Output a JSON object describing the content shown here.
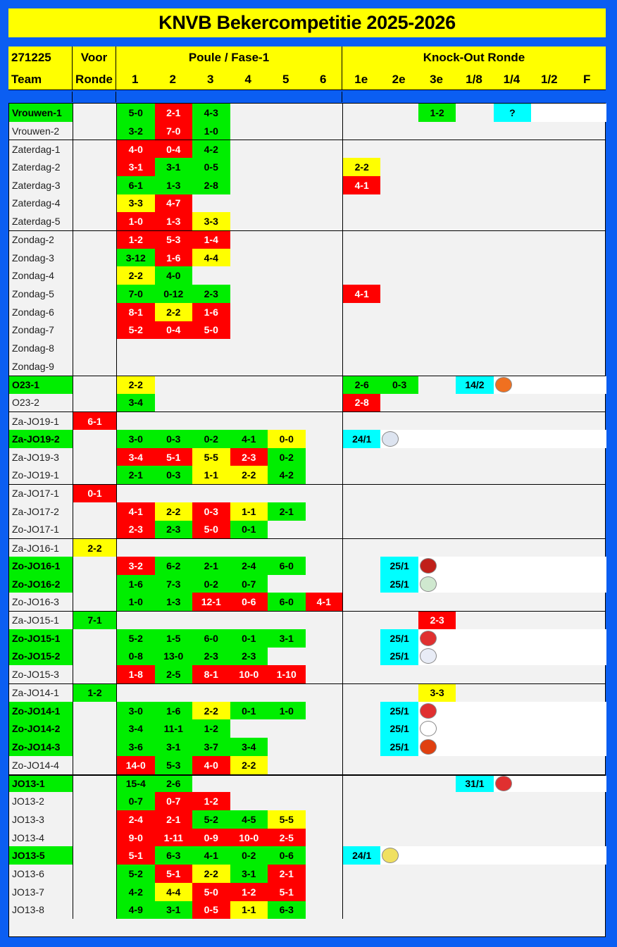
{
  "title": "KNVB Bekercompetitie 2025-2026",
  "header": {
    "date": "271225",
    "team": "Team",
    "voor1": "Voor",
    "voor2": "Ronde",
    "poule": "Poule / Fase-1",
    "knockout": "Knock-Out Ronde",
    "poule_cols": [
      "1",
      "2",
      "3",
      "4",
      "5",
      "6"
    ],
    "ko_cols": [
      "1e",
      "2e",
      "3e",
      "1/8",
      "1/4",
      "1/2",
      "F"
    ]
  },
  "colors": {
    "g": "#00ee00",
    "r": "#ff0000",
    "y": "#ffff00",
    "c": "#00ffff",
    "border": "#0b5ef2"
  },
  "groups": [
    [
      {
        "team": "Vrouwen-1",
        "active": true,
        "poule": [
          [
            "5-0",
            "g"
          ],
          [
            "2-1",
            "r"
          ],
          [
            "4-3",
            "g"
          ]
        ],
        "ko": [
          null,
          null,
          [
            "1-2",
            "g"
          ],
          null,
          [
            "?",
            "c"
          ]
        ]
      },
      {
        "team": "Vrouwen-2",
        "poule": [
          [
            "3-2",
            "g"
          ],
          [
            "7-0",
            "r"
          ],
          [
            "1-0",
            "g"
          ]
        ]
      }
    ],
    [
      {
        "team": "Zaterdag-1",
        "poule": [
          [
            "4-0",
            "r"
          ],
          [
            "0-4",
            "r"
          ],
          [
            "4-2",
            "g"
          ]
        ]
      },
      {
        "team": "Zaterdag-2",
        "poule": [
          [
            "3-1",
            "r"
          ],
          [
            "3-1",
            "g"
          ],
          [
            "0-5",
            "g"
          ]
        ],
        "ko": [
          [
            "2-2",
            "y"
          ]
        ]
      },
      {
        "team": "Zaterdag-3",
        "poule": [
          [
            "6-1",
            "g"
          ],
          [
            "1-3",
            "g"
          ],
          [
            "2-8",
            "g"
          ]
        ],
        "ko": [
          [
            "4-1",
            "r"
          ]
        ]
      },
      {
        "team": "Zaterdag-4",
        "poule": [
          [
            "3-3",
            "y"
          ],
          [
            "4-7",
            "r"
          ]
        ]
      },
      {
        "team": "Zaterdag-5",
        "poule": [
          [
            "1-0",
            "r"
          ],
          [
            "1-3",
            "r"
          ],
          [
            "3-3",
            "y"
          ]
        ]
      }
    ],
    [
      {
        "team": "Zondag-2",
        "poule": [
          [
            "1-2",
            "r"
          ],
          [
            "5-3",
            "r"
          ],
          [
            "1-4",
            "r"
          ]
        ]
      },
      {
        "team": "Zondag-3",
        "poule": [
          [
            "3-12",
            "g"
          ],
          [
            "1-6",
            "r"
          ],
          [
            "4-4",
            "y"
          ]
        ]
      },
      {
        "team": "Zondag-4",
        "poule": [
          [
            "2-2",
            "y"
          ],
          [
            "4-0",
            "g"
          ]
        ]
      },
      {
        "team": "Zondag-5",
        "poule": [
          [
            "7-0",
            "g"
          ],
          [
            "0-12",
            "g"
          ],
          [
            "2-3",
            "g"
          ]
        ],
        "ko": [
          [
            "4-1",
            "r"
          ]
        ]
      },
      {
        "team": "Zondag-6",
        "poule": [
          [
            "8-1",
            "r"
          ],
          [
            "2-2",
            "y"
          ],
          [
            "1-6",
            "r"
          ]
        ]
      },
      {
        "team": "Zondag-7",
        "poule": [
          [
            "5-2",
            "r"
          ],
          [
            "0-4",
            "r"
          ],
          [
            "5-0",
            "r"
          ]
        ]
      },
      {
        "team": "Zondag-8",
        "poule": []
      },
      {
        "team": "Zondag-9",
        "poule": []
      }
    ],
    [
      {
        "team": "O23-1",
        "active": true,
        "poule": [
          [
            "2-2",
            "y"
          ]
        ],
        "ko": [
          [
            "2-6",
            "g"
          ],
          [
            "0-3",
            "g"
          ],
          null,
          [
            "14/2",
            "c"
          ],
          {
            "logo": "FC Volendam",
            "bg": "#f07020",
            "fg": "#000"
          }
        ]
      },
      {
        "team": "O23-2",
        "poule": [
          [
            "3-4",
            "g"
          ]
        ],
        "ko": [
          [
            "2-8",
            "r"
          ]
        ]
      }
    ],
    [
      {
        "team": "Za-JO19-1",
        "voor": [
          "6-1",
          "r"
        ],
        "poule": []
      },
      {
        "team": "Za-JO19-2",
        "active": true,
        "poule": [
          [
            "3-0",
            "g"
          ],
          [
            "0-3",
            "g"
          ],
          [
            "0-2",
            "g"
          ],
          [
            "4-1",
            "g"
          ],
          [
            "0-0",
            "y"
          ]
        ],
        "ko": [
          [
            "24/1",
            "c"
          ],
          {
            "logo": "club",
            "bg": "#dde4f0",
            "fg": "#223"
          }
        ]
      },
      {
        "team": "Za-JO19-3",
        "poule": [
          [
            "3-4",
            "r"
          ],
          [
            "5-1",
            "r"
          ],
          [
            "5-5",
            "y"
          ],
          [
            "2-3",
            "r"
          ],
          [
            "0-2",
            "g"
          ]
        ]
      },
      {
        "team": "Zo-JO19-1",
        "poule": [
          [
            "2-1",
            "g"
          ],
          [
            "0-3",
            "g"
          ],
          [
            "1-1",
            "y"
          ],
          [
            "2-2",
            "y"
          ],
          [
            "4-2",
            "g"
          ]
        ]
      }
    ],
    [
      {
        "team": "Za-JO17-1",
        "voor": [
          "0-1",
          "r"
        ],
        "poule": []
      },
      {
        "team": "Za-JO17-2",
        "poule": [
          [
            "4-1",
            "r"
          ],
          [
            "2-2",
            "y"
          ],
          [
            "0-3",
            "r"
          ],
          [
            "1-1",
            "y"
          ],
          [
            "2-1",
            "g"
          ]
        ]
      },
      {
        "team": "Zo-JO17-1",
        "poule": [
          [
            "2-3",
            "r"
          ],
          [
            "2-3",
            "g"
          ],
          [
            "5-0",
            "r"
          ],
          [
            "0-1",
            "g"
          ]
        ]
      }
    ],
    [
      {
        "team": "Za-JO16-1",
        "voor": [
          "2-2",
          "y"
        ],
        "poule": []
      },
      {
        "team": "Zo-JO16-1",
        "active": true,
        "poule": [
          [
            "3-2",
            "r"
          ],
          [
            "6-2",
            "g"
          ],
          [
            "2-1",
            "g"
          ],
          [
            "2-4",
            "g"
          ],
          [
            "6-0",
            "g"
          ]
        ],
        "ko": [
          null,
          [
            "25/1",
            "c"
          ],
          {
            "logo": "club",
            "bg": "#c0201a",
            "fg": "#fff"
          }
        ]
      },
      {
        "team": "Zo-JO16-2",
        "active": true,
        "poule": [
          [
            "1-6",
            "g"
          ],
          [
            "7-3",
            "g"
          ],
          [
            "0-2",
            "g"
          ],
          [
            "0-7",
            "g"
          ]
        ],
        "ko": [
          null,
          [
            "25/1",
            "c"
          ],
          {
            "logo": "club",
            "bg": "#cfe8cf",
            "fg": "#2a8a2a"
          }
        ]
      },
      {
        "team": "Zo-JO16-3",
        "poule": [
          [
            "1-0",
            "g"
          ],
          [
            "1-3",
            "g"
          ],
          [
            "12-1",
            "r"
          ],
          [
            "0-6",
            "r"
          ],
          [
            "6-0",
            "g"
          ],
          [
            "4-1",
            "r"
          ]
        ]
      }
    ],
    [
      {
        "team": "Za-JO15-1",
        "voor": [
          "7-1",
          "g"
        ],
        "poule": [],
        "ko": [
          null,
          null,
          [
            "2-3",
            "r"
          ]
        ]
      },
      {
        "team": "Zo-JO15-1",
        "active": true,
        "poule": [
          [
            "5-2",
            "g"
          ],
          [
            "1-5",
            "g"
          ],
          [
            "6-0",
            "g"
          ],
          [
            "0-1",
            "g"
          ],
          [
            "3-1",
            "g"
          ]
        ],
        "ko": [
          null,
          [
            "25/1",
            "c"
          ],
          {
            "logo": "club",
            "bg": "#e03030",
            "fg": "#fff"
          }
        ]
      },
      {
        "team": "Zo-JO15-2",
        "active": true,
        "poule": [
          [
            "0-8",
            "g"
          ],
          [
            "13-0",
            "g"
          ],
          [
            "2-3",
            "g"
          ],
          [
            "2-3",
            "g"
          ]
        ],
        "ko": [
          null,
          [
            "25/1",
            "c"
          ],
          {
            "logo": "SWIFT",
            "bg": "#e8ecf6",
            "fg": "#223"
          }
        ]
      },
      {
        "team": "Zo-JO15-3",
        "poule": [
          [
            "1-8",
            "r"
          ],
          [
            "2-5",
            "g"
          ],
          [
            "8-1",
            "r"
          ],
          [
            "10-0",
            "r"
          ],
          [
            "1-10",
            "r"
          ]
        ]
      }
    ],
    [
      {
        "team": "Za-JO14-1",
        "voor": [
          "1-2",
          "g"
        ],
        "poule": [],
        "ko": [
          null,
          null,
          [
            "3-3",
            "y"
          ]
        ]
      },
      {
        "team": "Zo-JO14-1",
        "active": true,
        "poule": [
          [
            "3-0",
            "g"
          ],
          [
            "1-6",
            "g"
          ],
          [
            "2-2",
            "y"
          ],
          [
            "0-1",
            "g"
          ],
          [
            "1-0",
            "g"
          ]
        ],
        "ko": [
          null,
          [
            "25/1",
            "c"
          ],
          {
            "logo": "SDW",
            "bg": "#e03030",
            "fg": "#fff"
          }
        ]
      },
      {
        "team": "Zo-JO14-2",
        "active": true,
        "poule": [
          [
            "3-4",
            "g"
          ],
          [
            "11-1",
            "g"
          ],
          [
            "1-2",
            "g"
          ]
        ],
        "ko": [
          null,
          [
            "25/1",
            "c"
          ],
          {
            "logo": "kdo",
            "bg": "#fff",
            "fg": "#d02030"
          }
        ]
      },
      {
        "team": "Zo-JO14-3",
        "active": true,
        "poule": [
          [
            "3-6",
            "g"
          ],
          [
            "3-1",
            "g"
          ],
          [
            "3-7",
            "g"
          ],
          [
            "3-4",
            "g"
          ]
        ],
        "ko": [
          null,
          [
            "25/1",
            "c"
          ],
          {
            "logo": "club",
            "bg": "#e04010",
            "fg": "#ffcc00"
          }
        ]
      },
      {
        "team": "Zo-JO14-4",
        "poule": [
          [
            "14-0",
            "r"
          ],
          [
            "5-3",
            "g"
          ],
          [
            "4-0",
            "r"
          ],
          [
            "2-2",
            "y"
          ]
        ]
      }
    ],
    [
      {
        "team": "JO13-1",
        "active": true,
        "poule": [
          [
            "15-4",
            "g"
          ],
          [
            "2-6",
            "g"
          ]
        ],
        "ko": [
          null,
          null,
          null,
          [
            "31/1",
            "c"
          ],
          {
            "logo": "PSV",
            "bg": "#e03030",
            "fg": "#fff"
          }
        ]
      },
      {
        "team": "JO13-2",
        "poule": [
          [
            "0-7",
            "g"
          ],
          [
            "0-7",
            "r"
          ],
          [
            "1-2",
            "r"
          ]
        ]
      },
      {
        "team": "JO13-3",
        "poule": [
          [
            "2-4",
            "r"
          ],
          [
            "2-1",
            "r"
          ],
          [
            "5-2",
            "g"
          ],
          [
            "4-5",
            "g"
          ],
          [
            "5-5",
            "y"
          ]
        ]
      },
      {
        "team": "JO13-4",
        "poule": [
          [
            "9-0",
            "r"
          ],
          [
            "1-11",
            "r"
          ],
          [
            "0-9",
            "r"
          ],
          [
            "10-0",
            "r"
          ],
          [
            "2-5",
            "r"
          ]
        ]
      },
      {
        "team": "JO13-5",
        "active": true,
        "poule": [
          [
            "5-1",
            "r"
          ],
          [
            "6-3",
            "g"
          ],
          [
            "4-1",
            "g"
          ],
          [
            "0-2",
            "g"
          ],
          [
            "0-6",
            "g"
          ]
        ],
        "ko": [
          [
            "24/1",
            "c"
          ],
          {
            "logo": "ASBD",
            "bg": "#f0e060",
            "fg": "#1a2a80"
          }
        ]
      },
      {
        "team": "JO13-6",
        "poule": [
          [
            "5-2",
            "g"
          ],
          [
            "5-1",
            "r"
          ],
          [
            "2-2",
            "y"
          ],
          [
            "3-1",
            "g"
          ],
          [
            "2-1",
            "r"
          ]
        ]
      },
      {
        "team": "JO13-7",
        "poule": [
          [
            "4-2",
            "g"
          ],
          [
            "4-4",
            "y"
          ],
          [
            "5-0",
            "r"
          ],
          [
            "1-2",
            "r"
          ],
          [
            "5-1",
            "r"
          ]
        ]
      },
      {
        "team": "JO13-8",
        "poule": [
          [
            "4-9",
            "g"
          ],
          [
            "3-1",
            "g"
          ],
          [
            "0-5",
            "r"
          ],
          [
            "1-1",
            "y"
          ],
          [
            "6-3",
            "g"
          ]
        ]
      }
    ]
  ]
}
